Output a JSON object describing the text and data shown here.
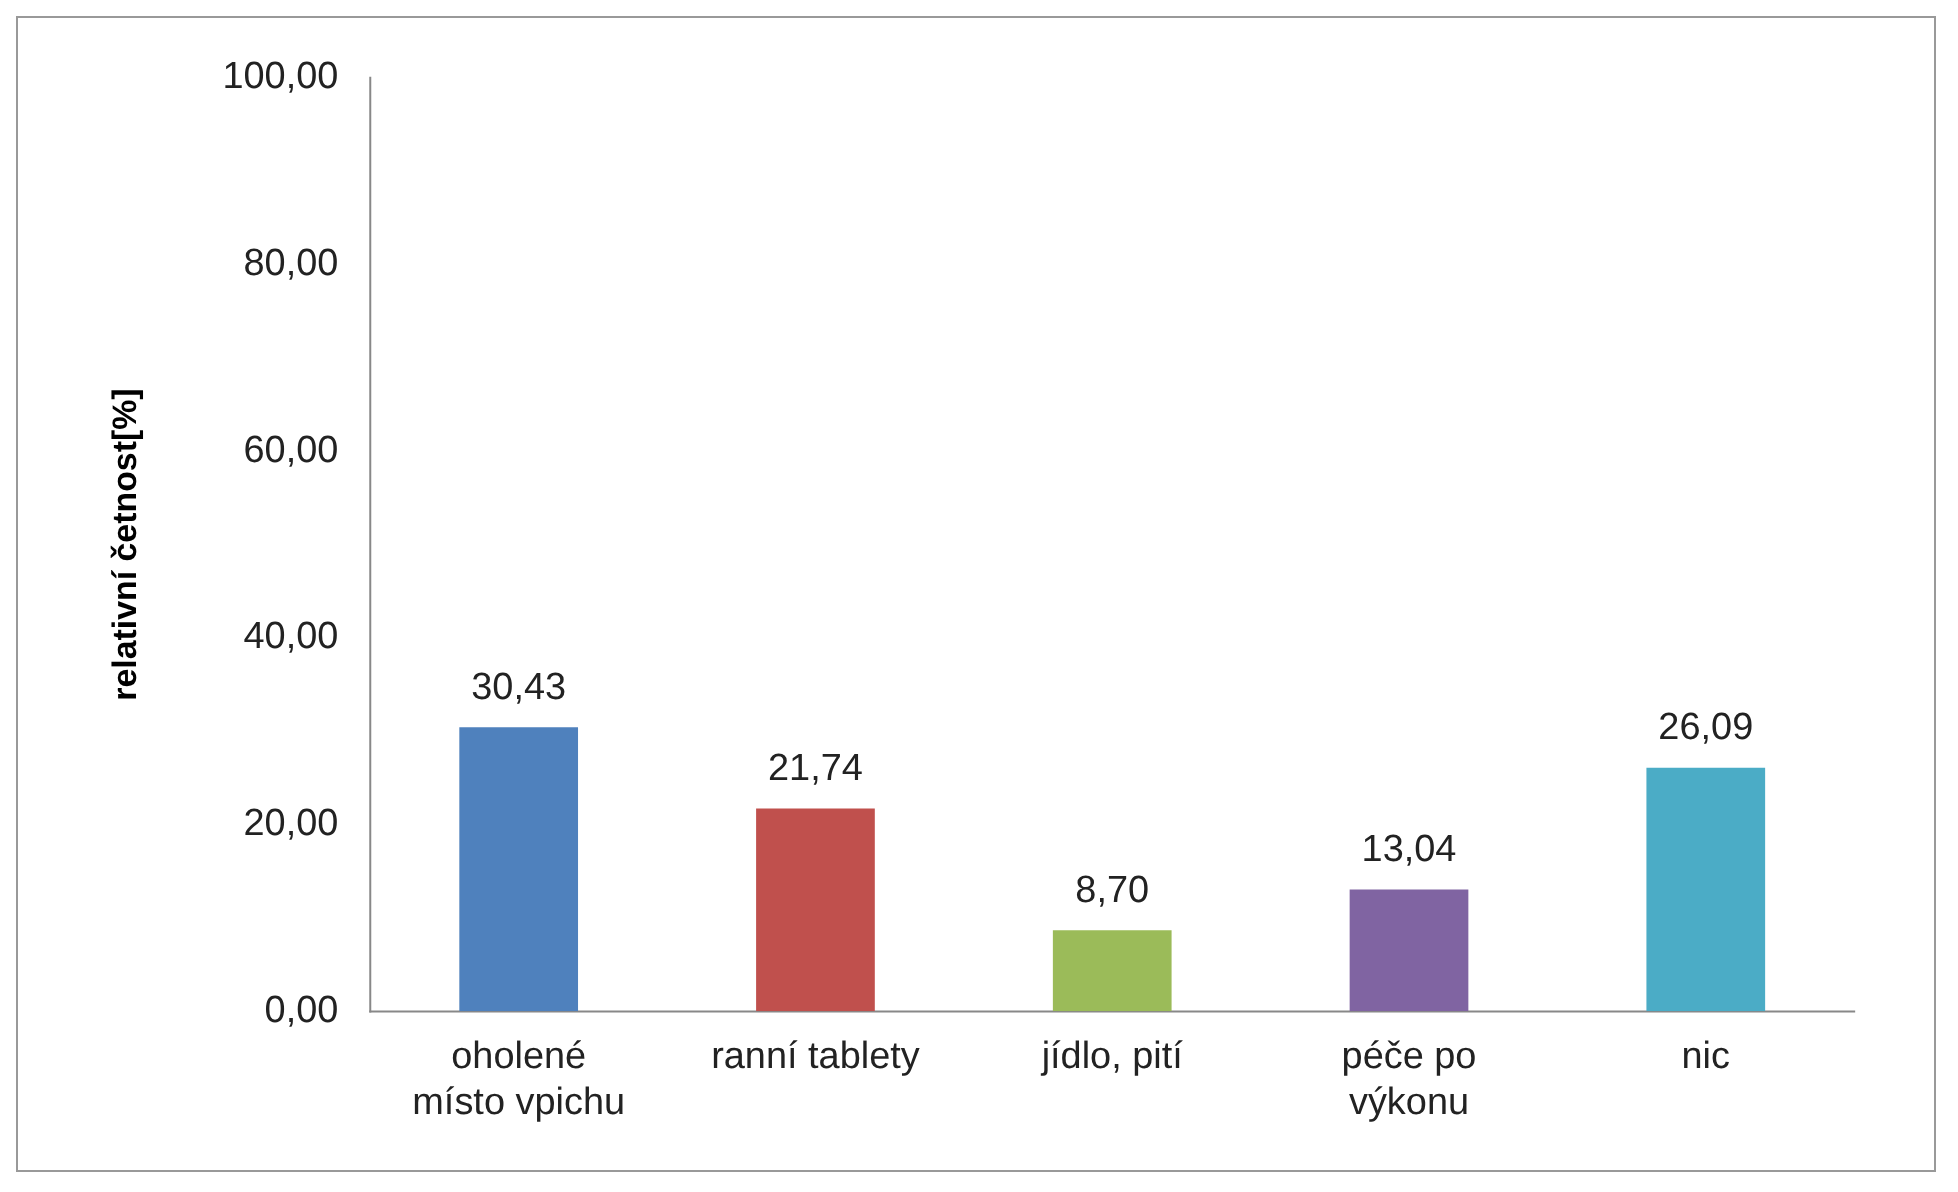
{
  "chart_data": {
    "type": "bar",
    "ylabel": "relativní četnost[%]",
    "categories": [
      "oholené\nmísto vpichu",
      "ranní tablety",
      "jídlo, pití",
      "péče po\nvýkonu",
      "nic"
    ],
    "values": [
      30.43,
      21.74,
      8.7,
      13.04,
      26.09
    ],
    "colors": [
      "#4f81bd",
      "#c0504d",
      "#9bbb59",
      "#8064a2",
      "#4bacc6"
    ],
    "value_labels": [
      "30,43",
      "21,74",
      "8,70",
      "13,04",
      "26,09"
    ],
    "ylim": [
      0,
      100
    ],
    "yticks": [
      {
        "value": 0,
        "label": "0,00"
      },
      {
        "value": 20,
        "label": "20,00"
      },
      {
        "value": 40,
        "label": "40,00"
      },
      {
        "value": 60,
        "label": "60,00"
      },
      {
        "value": 80,
        "label": "80,00"
      },
      {
        "value": 100,
        "label": "100,00"
      }
    ],
    "grid": false,
    "legend": false
  }
}
